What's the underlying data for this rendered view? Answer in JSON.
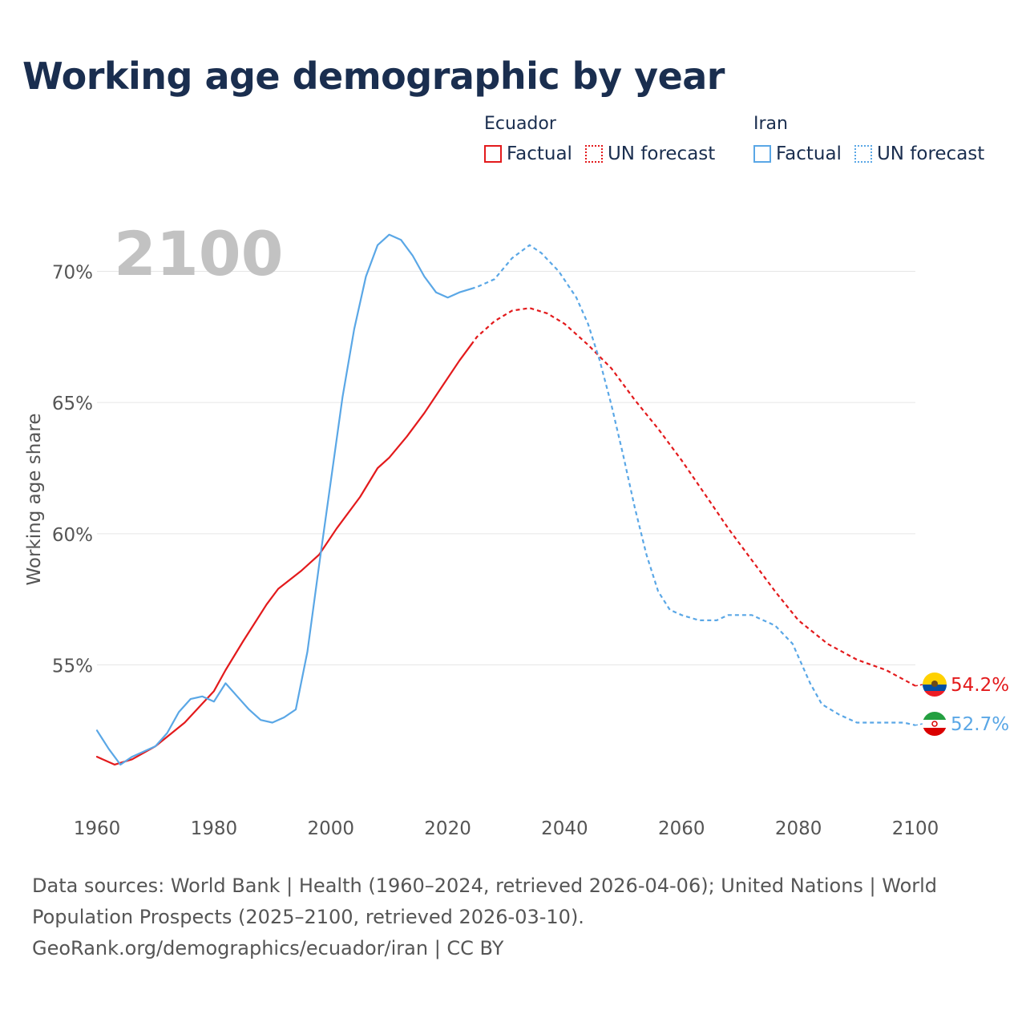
{
  "title": "Working age demographic by year",
  "legend": {
    "groups": [
      {
        "name": "Ecuador",
        "color": "#e31a1c",
        "factual_label": "Factual",
        "forecast_label": "UN forecast"
      },
      {
        "name": "Iran",
        "color": "#5aa7e6",
        "factual_label": "Factual",
        "forecast_label": "UN forecast"
      }
    ]
  },
  "footer": {
    "sources": "Data sources: World Bank | Health (1960–2024, retrieved 2026-04-06); United Nations | World Population Prospects (2025–2100, retrieved 2026-03-10).",
    "credit": "GeoRank.org/demographics/ecuador/iran | CC BY"
  },
  "chart_data": {
    "type": "line",
    "title": "Working age demographic by year",
    "year_label": "2100",
    "ylabel": "Working age share",
    "xlabel": "",
    "xlim": [
      1960,
      2100
    ],
    "ylim": [
      50,
      72
    ],
    "x_ticks": [
      1960,
      1980,
      2000,
      2020,
      2040,
      2060,
      2080,
      2100
    ],
    "x_tick_labels": [
      "1960",
      "1980",
      "2000",
      "2020",
      "2040",
      "2060",
      "2080",
      "2100"
    ],
    "y_ticks": [
      55,
      60,
      65,
      70
    ],
    "y_tick_labels": [
      "55%",
      "60%",
      "65%",
      "70%"
    ],
    "grid": true,
    "factual_end_year": 2024,
    "series": [
      {
        "name": "Ecuador",
        "color": "#e31a1c",
        "end_label": "54.2%",
        "points": [
          [
            1960,
            51.5
          ],
          [
            1963,
            51.2
          ],
          [
            1966,
            51.4
          ],
          [
            1970,
            51.9
          ],
          [
            1975,
            52.8
          ],
          [
            1980,
            54.0
          ],
          [
            1982,
            54.8
          ],
          [
            1985,
            55.9
          ],
          [
            1989,
            57.3
          ],
          [
            1991,
            57.9
          ],
          [
            1995,
            58.6
          ],
          [
            1998,
            59.2
          ],
          [
            2001,
            60.2
          ],
          [
            2005,
            61.4
          ],
          [
            2008,
            62.5
          ],
          [
            2010,
            62.9
          ],
          [
            2013,
            63.7
          ],
          [
            2016,
            64.6
          ],
          [
            2019,
            65.6
          ],
          [
            2022,
            66.6
          ],
          [
            2025,
            67.5
          ],
          [
            2028,
            68.1
          ],
          [
            2031,
            68.5
          ],
          [
            2034,
            68.6
          ],
          [
            2037,
            68.4
          ],
          [
            2040,
            68.0
          ],
          [
            2044,
            67.2
          ],
          [
            2048,
            66.3
          ],
          [
            2052,
            65.1
          ],
          [
            2056,
            64.0
          ],
          [
            2060,
            62.8
          ],
          [
            2064,
            61.5
          ],
          [
            2068,
            60.2
          ],
          [
            2072,
            59.0
          ],
          [
            2076,
            57.8
          ],
          [
            2080,
            56.7
          ],
          [
            2085,
            55.8
          ],
          [
            2090,
            55.2
          ],
          [
            2095,
            54.8
          ],
          [
            2100,
            54.2
          ]
        ]
      },
      {
        "name": "Iran",
        "color": "#5aa7e6",
        "end_label": "52.7%",
        "points": [
          [
            1960,
            52.5
          ],
          [
            1962,
            51.8
          ],
          [
            1964,
            51.2
          ],
          [
            1966,
            51.5
          ],
          [
            1970,
            51.9
          ],
          [
            1972,
            52.4
          ],
          [
            1974,
            53.2
          ],
          [
            1976,
            53.7
          ],
          [
            1978,
            53.8
          ],
          [
            1980,
            53.6
          ],
          [
            1982,
            54.3
          ],
          [
            1984,
            53.8
          ],
          [
            1986,
            53.3
          ],
          [
            1988,
            52.9
          ],
          [
            1990,
            52.8
          ],
          [
            1992,
            53.0
          ],
          [
            1994,
            53.3
          ],
          [
            1996,
            55.5
          ],
          [
            1998,
            58.8
          ],
          [
            2000,
            62.0
          ],
          [
            2002,
            65.2
          ],
          [
            2004,
            67.8
          ],
          [
            2006,
            69.8
          ],
          [
            2008,
            71.0
          ],
          [
            2010,
            71.4
          ],
          [
            2012,
            71.2
          ],
          [
            2014,
            70.6
          ],
          [
            2016,
            69.8
          ],
          [
            2018,
            69.2
          ],
          [
            2020,
            69.0
          ],
          [
            2022,
            69.2
          ],
          [
            2025,
            69.4
          ],
          [
            2028,
            69.7
          ],
          [
            2031,
            70.5
          ],
          [
            2034,
            71.0
          ],
          [
            2036,
            70.7
          ],
          [
            2039,
            70.0
          ],
          [
            2042,
            69.0
          ],
          [
            2044,
            68.0
          ],
          [
            2046,
            66.6
          ],
          [
            2048,
            64.9
          ],
          [
            2050,
            63.0
          ],
          [
            2052,
            61.0
          ],
          [
            2054,
            59.2
          ],
          [
            2056,
            57.8
          ],
          [
            2058,
            57.1
          ],
          [
            2060,
            56.9
          ],
          [
            2063,
            56.7
          ],
          [
            2066,
            56.7
          ],
          [
            2068,
            56.9
          ],
          [
            2072,
            56.9
          ],
          [
            2076,
            56.5
          ],
          [
            2079,
            55.8
          ],
          [
            2082,
            54.3
          ],
          [
            2084,
            53.5
          ],
          [
            2087,
            53.1
          ],
          [
            2090,
            52.8
          ],
          [
            2095,
            52.8
          ],
          [
            2098,
            52.8
          ],
          [
            2100,
            52.7
          ]
        ]
      }
    ]
  }
}
